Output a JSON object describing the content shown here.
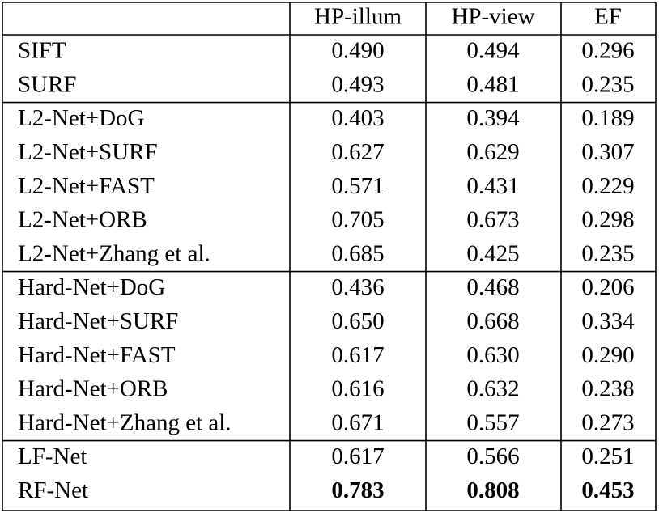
{
  "table": {
    "header": [
      "HP-illum",
      "HP-view",
      "EF"
    ],
    "groups": [
      [
        {
          "label": "SIFT",
          "values": [
            "0.490",
            "0.494",
            "0.296"
          ]
        },
        {
          "label": "SURF",
          "values": [
            "0.493",
            "0.481",
            "0.235"
          ]
        }
      ],
      [
        {
          "label": "L2-Net+DoG",
          "values": [
            "0.403",
            "0.394",
            "0.189"
          ]
        },
        {
          "label": "L2-Net+SURF",
          "values": [
            "0.627",
            "0.629",
            "0.307"
          ]
        },
        {
          "label": "L2-Net+FAST",
          "values": [
            "0.571",
            "0.431",
            "0.229"
          ]
        },
        {
          "label": "L2-Net+ORB",
          "values": [
            "0.705",
            "0.673",
            "0.298"
          ]
        },
        {
          "label": "L2-Net+Zhang et al.",
          "values": [
            "0.685",
            "0.425",
            "0.235"
          ]
        }
      ],
      [
        {
          "label": "Hard-Net+DoG",
          "values": [
            "0.436",
            "0.468",
            "0.206"
          ]
        },
        {
          "label": "Hard-Net+SURF",
          "values": [
            "0.650",
            "0.668",
            "0.334"
          ]
        },
        {
          "label": "Hard-Net+FAST",
          "values": [
            "0.617",
            "0.630",
            "0.290"
          ]
        },
        {
          "label": "Hard-Net+ORB",
          "values": [
            "0.616",
            "0.632",
            "0.238"
          ]
        },
        {
          "label": "Hard-Net+Zhang et al.",
          "values": [
            "0.671",
            "0.557",
            "0.273"
          ]
        }
      ],
      [
        {
          "label": "LF-Net",
          "values": [
            "0.617",
            "0.566",
            "0.251"
          ]
        },
        {
          "label": "RF-Net",
          "values": [
            "0.783",
            "0.808",
            "0.453"
          ],
          "bold": true
        }
      ]
    ]
  }
}
